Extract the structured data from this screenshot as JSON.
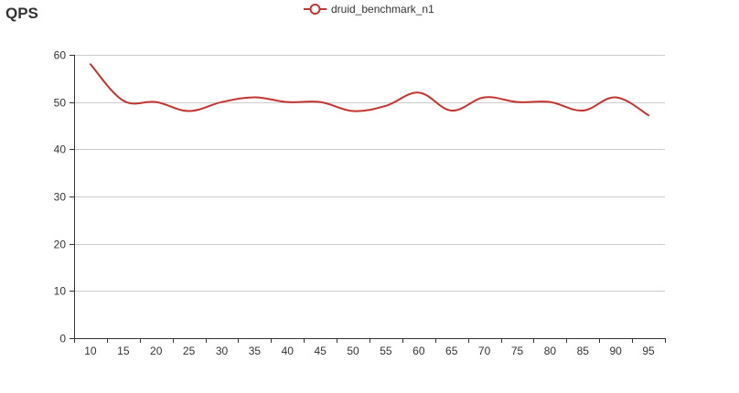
{
  "chart_data": {
    "type": "line",
    "title": "QPS",
    "xlabel": "",
    "ylabel": "",
    "x": [
      10,
      15,
      20,
      25,
      30,
      35,
      40,
      45,
      50,
      55,
      60,
      65,
      70,
      75,
      80,
      85,
      90,
      95
    ],
    "xlim": [
      7.5,
      97.5
    ],
    "ylim": [
      0,
      60
    ],
    "y_ticks": [
      0,
      10,
      20,
      30,
      40,
      50,
      60
    ],
    "grid": "horizontal",
    "legend_position": "top-center",
    "series": [
      {
        "name": "druid_benchmark_n1",
        "color": "#c23531",
        "values": [
          58,
          50.3,
          50,
          48.1,
          50,
          51,
          50,
          50,
          48.1,
          49.2,
          52,
          48.2,
          51,
          50,
          50,
          48.2,
          51,
          47.2
        ]
      }
    ]
  }
}
